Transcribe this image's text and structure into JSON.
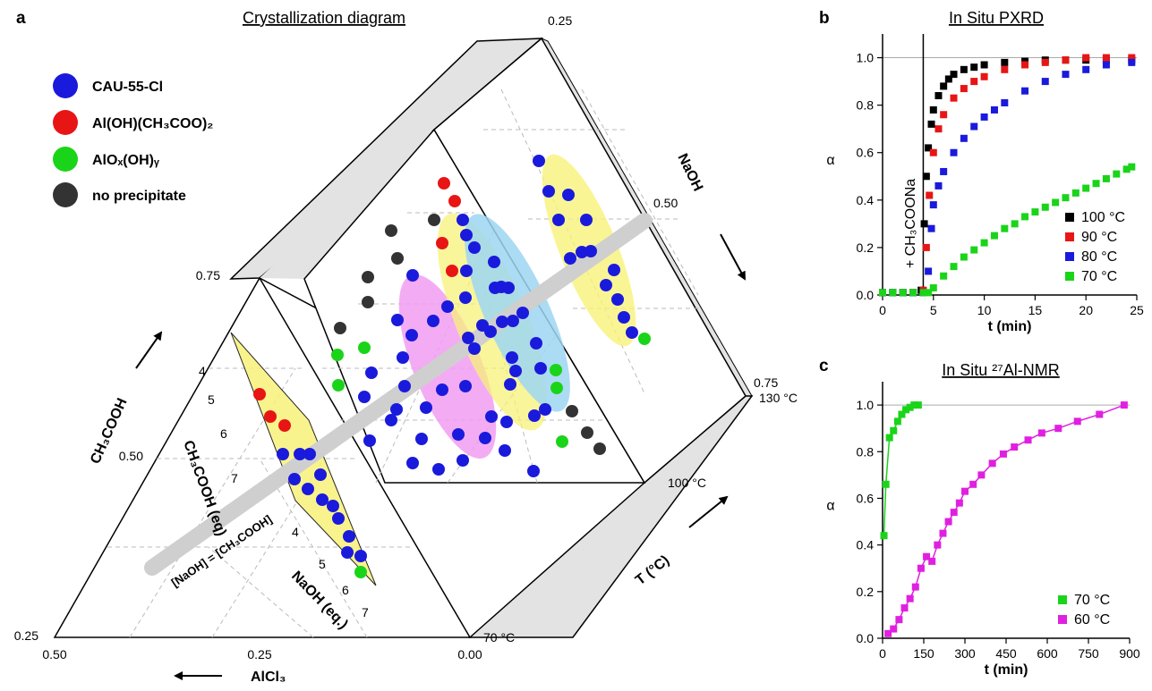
{
  "panels": {
    "a": {
      "label": "a",
      "title": "Crystallization diagram",
      "legend": [
        {
          "label": "CAU-55-Cl",
          "color": "#1a1adc"
        },
        {
          "label": "Al(OH)(CH₃COO)₂",
          "color": "#e81515"
        },
        {
          "label": "AlOₓ(OH)ᵧ",
          "color": "#1ad41a"
        },
        {
          "label": "no precipitate",
          "color": "#333333"
        }
      ],
      "axes": {
        "acetic": "CH₃COOH",
        "naoh": "NaOH",
        "alcl3": "AlCl₃",
        "temp": "T (°C)",
        "acetic_eq": "CH₃COOH (eq)",
        "naoh_eq": "NaOH (eq.)",
        "line_label": "[NaOH] = [CH₃COOH]"
      },
      "ticks": {
        "left": [
          "0.75",
          "0.50",
          "0.25"
        ],
        "bottom": [
          "0.50",
          "0.25",
          "0.00"
        ],
        "right": [
          "0.25",
          "0.50",
          "0.75"
        ],
        "temp": [
          "70 °C",
          "100 °C",
          "130 °C"
        ],
        "acetic_eq": [
          "4",
          "5",
          "6",
          "7"
        ],
        "naoh_eq": [
          "4",
          "5",
          "6",
          "7"
        ]
      }
    },
    "b": {
      "label": "b",
      "title": "In Situ PXRD",
      "annotation": "+ CH₃COONa"
    },
    "c": {
      "label": "c",
      "title": "In Situ ²⁷Al-NMR"
    }
  },
  "chart_data": [
    {
      "type": "scatter",
      "panel": "b",
      "title": "In Situ PXRD",
      "xlabel": "t (min)",
      "ylabel": "α",
      "xlim": [
        0,
        25
      ],
      "ylim": [
        0,
        1.1
      ],
      "xticks": [
        0,
        5,
        10,
        15,
        20,
        25
      ],
      "yticks": [
        0.0,
        0.2,
        0.4,
        0.6,
        0.8,
        1.0
      ],
      "legend_position": "lower-right",
      "reference_line": 1.0,
      "event_time": 4.0,
      "series": [
        {
          "name": "100 °C",
          "color": "#000000",
          "x": [
            0,
            1,
            2,
            3,
            3.8,
            4.1,
            4.3,
            4.5,
            4.8,
            5,
            5.5,
            6,
            6.5,
            7,
            8,
            9,
            10,
            12,
            14,
            16,
            18,
            20,
            22,
            24.5
          ],
          "y": [
            0.01,
            0.01,
            0.01,
            0.01,
            0.02,
            0.3,
            0.5,
            0.62,
            0.72,
            0.78,
            0.84,
            0.88,
            0.91,
            0.93,
            0.95,
            0.96,
            0.97,
            0.98,
            0.985,
            0.99,
            0.99,
            0.99,
            0.99,
            0.99
          ]
        },
        {
          "name": "90 °C",
          "color": "#e81515",
          "x": [
            0,
            1,
            2,
            3,
            4,
            4.3,
            4.6,
            5,
            5.5,
            6,
            7,
            8,
            9,
            10,
            12,
            14,
            16,
            18,
            20,
            22,
            24.5
          ],
          "y": [
            0.01,
            0.01,
            0.01,
            0.01,
            0.02,
            0.2,
            0.42,
            0.6,
            0.7,
            0.76,
            0.83,
            0.87,
            0.9,
            0.92,
            0.95,
            0.97,
            0.98,
            0.99,
            1.0,
            1.0,
            1.0
          ]
        },
        {
          "name": "80 °C",
          "color": "#1a1adc",
          "x": [
            0,
            1,
            2,
            3,
            4,
            4.5,
            4.8,
            5,
            5.5,
            6,
            7,
            8,
            9,
            10,
            11,
            12,
            14,
            16,
            18,
            20,
            22,
            24.5
          ],
          "y": [
            0.01,
            0.01,
            0.01,
            0.01,
            0.01,
            0.1,
            0.28,
            0.38,
            0.46,
            0.52,
            0.6,
            0.66,
            0.71,
            0.75,
            0.78,
            0.81,
            0.86,
            0.9,
            0.93,
            0.95,
            0.97,
            0.98
          ]
        },
        {
          "name": "70 °C",
          "color": "#1ad41a",
          "x": [
            0,
            1,
            2,
            3,
            4,
            4.5,
            5,
            6,
            7,
            8,
            9,
            10,
            11,
            12,
            13,
            14,
            15,
            16,
            17,
            18,
            19,
            20,
            21,
            22,
            23,
            24,
            24.5
          ],
          "y": [
            0.01,
            0.01,
            0.01,
            0.01,
            0.01,
            0.01,
            0.03,
            0.08,
            0.12,
            0.16,
            0.19,
            0.22,
            0.25,
            0.28,
            0.3,
            0.33,
            0.35,
            0.37,
            0.39,
            0.41,
            0.43,
            0.45,
            0.47,
            0.49,
            0.51,
            0.53,
            0.54
          ]
        }
      ]
    },
    {
      "type": "scatter",
      "panel": "c",
      "title": "In Situ ²⁷Al-NMR",
      "xlabel": "t (min)",
      "ylabel": "α",
      "xlim": [
        0,
        900
      ],
      "ylim": [
        0,
        1.1
      ],
      "xticks": [
        0,
        150,
        300,
        450,
        600,
        750,
        900
      ],
      "yticks": [
        0.0,
        0.2,
        0.4,
        0.6,
        0.8,
        1.0
      ],
      "legend_position": "lower-right",
      "reference_line": 1.0,
      "series": [
        {
          "name": "70 °C",
          "color": "#1ad41a",
          "x": [
            5,
            12,
            25,
            40,
            55,
            70,
            85,
            100,
            115,
            130
          ],
          "y": [
            0.44,
            0.66,
            0.86,
            0.89,
            0.93,
            0.96,
            0.98,
            0.99,
            1.0,
            1.0
          ]
        },
        {
          "name": "60 °C",
          "color": "#e020e0",
          "x": [
            20,
            40,
            60,
            80,
            100,
            120,
            140,
            160,
            180,
            200,
            220,
            240,
            260,
            280,
            300,
            330,
            360,
            400,
            440,
            480,
            530,
            580,
            640,
            710,
            790,
            880
          ],
          "y": [
            0.02,
            0.04,
            0.08,
            0.13,
            0.17,
            0.22,
            0.3,
            0.35,
            0.33,
            0.4,
            0.45,
            0.5,
            0.54,
            0.58,
            0.63,
            0.66,
            0.7,
            0.75,
            0.79,
            0.82,
            0.85,
            0.88,
            0.9,
            0.93,
            0.96,
            1.0
          ]
        }
      ]
    }
  ]
}
